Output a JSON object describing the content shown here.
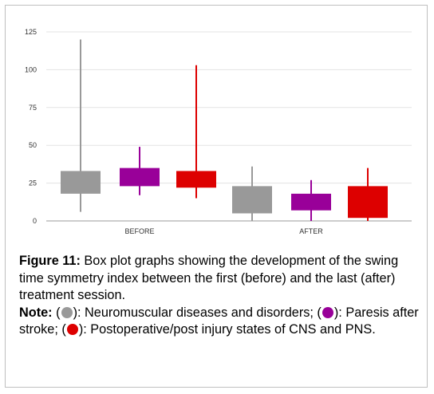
{
  "chart_data": {
    "type": "box",
    "categories": [
      "BEFORE",
      "AFTER"
    ],
    "ylim": [
      0,
      125
    ],
    "yticks": [
      "0",
      "25",
      "50",
      "75",
      "100",
      "125"
    ],
    "grid": true,
    "series": [
      {
        "color": "#999999",
        "boxes": [
          {
            "min": 6,
            "q1": 18,
            "q3": 33,
            "max": 120
          },
          {
            "min": 0,
            "q1": 5,
            "q3": 23,
            "max": 36
          }
        ]
      },
      {
        "color": "#990099",
        "boxes": [
          {
            "min": 17,
            "q1": 23,
            "q3": 35,
            "max": 49
          },
          {
            "min": 0,
            "q1": 7,
            "q3": 18,
            "max": 27
          }
        ]
      },
      {
        "color": "#dd0000",
        "boxes": [
          {
            "min": 15,
            "q1": 22,
            "q3": 33,
            "max": 103
          },
          {
            "min": 0,
            "q1": 2,
            "q3": 23,
            "max": 35
          }
        ]
      }
    ]
  },
  "caption": {
    "figure_label": "Figure 11:",
    "figure_text": " Box plot graphs showing the development of the swing time symmetry index between the first (before) and the last (after) treatment session.",
    "note_label": "Note:",
    "open_paren_1": " (",
    "text_1": "): Neuromuscular diseases and disorders; (",
    "text_2": "): Paresis after stroke; (",
    "text_3": "): Postoperative/post injury states of CNS and PNS.",
    "dot_colors": [
      "#999999",
      "#990099",
      "#dd0000"
    ]
  }
}
